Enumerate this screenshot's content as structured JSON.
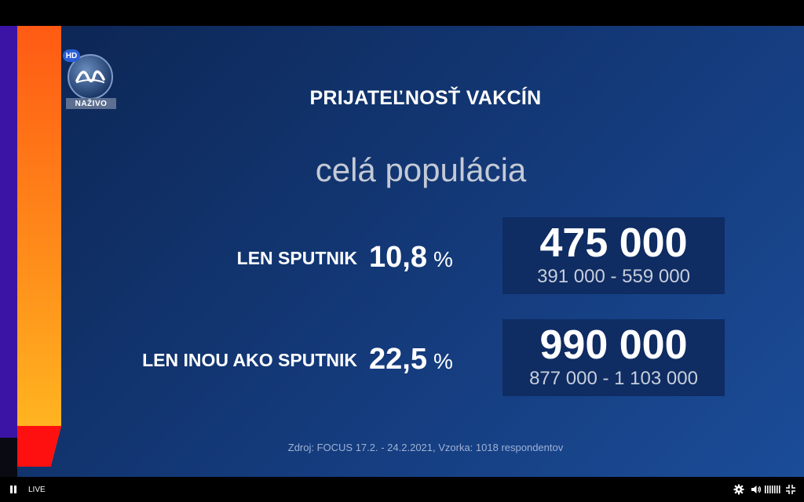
{
  "broadcast": {
    "logo": {
      "hd_badge": "HD",
      "live_badge": "NAŽIVO"
    },
    "title": "PRIJATEĽNOSŤ VAKCÍN",
    "subtitle": "celá populácia",
    "rows": [
      {
        "label": "LEN SPUTNIK",
        "percent": "10,8",
        "unit": "%",
        "estimate": "475 000",
        "range": "391 000 - 559 000"
      },
      {
        "label": "LEN INOU AKO SPUTNIK",
        "percent": "22,5",
        "unit": "%",
        "estimate": "990 000",
        "range": "877 000 - 1 103 000"
      }
    ],
    "source": "Zdroj: FOCUS 17.2. - 24.2.2021, Vzorka: 1018 respondentov"
  },
  "player": {
    "live_label": "LIVE",
    "icons": [
      "pause-icon",
      "settings-icon",
      "volume-icon",
      "quality-icon",
      "fullscreen-icon"
    ]
  }
}
